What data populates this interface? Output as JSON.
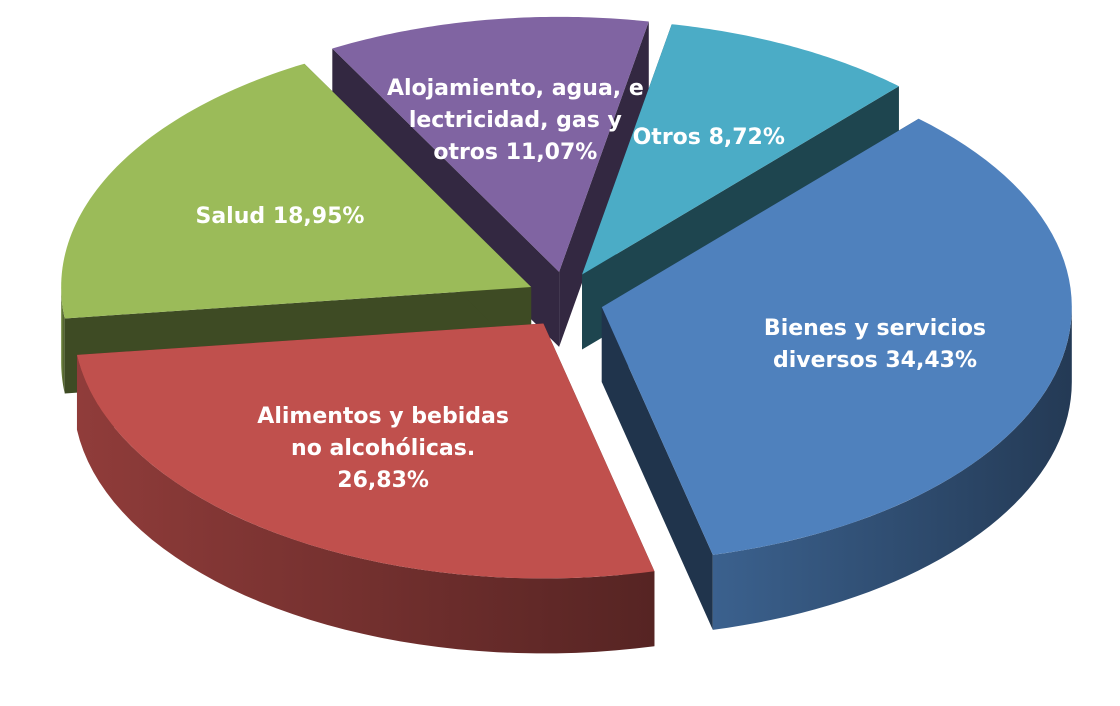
{
  "chart_data": {
    "type": "pie",
    "categories": [
      "Otros",
      "Bienes y servicios diversos",
      "Alimentos y bebidas no alcohólicas.",
      "Salud",
      "Alojamiento, agua, e lectricidad, gas y otros"
    ],
    "values": [
      8.72,
      34.43,
      26.83,
      18.95,
      11.07
    ],
    "value_labels": [
      "8,72%",
      "34,43%",
      "26,83%",
      "18,95%",
      "11,07%"
    ],
    "colors": [
      "#4bacc6",
      "#4f81bd",
      "#c0504d",
      "#9bbb59",
      "#8064a2"
    ]
  }
}
